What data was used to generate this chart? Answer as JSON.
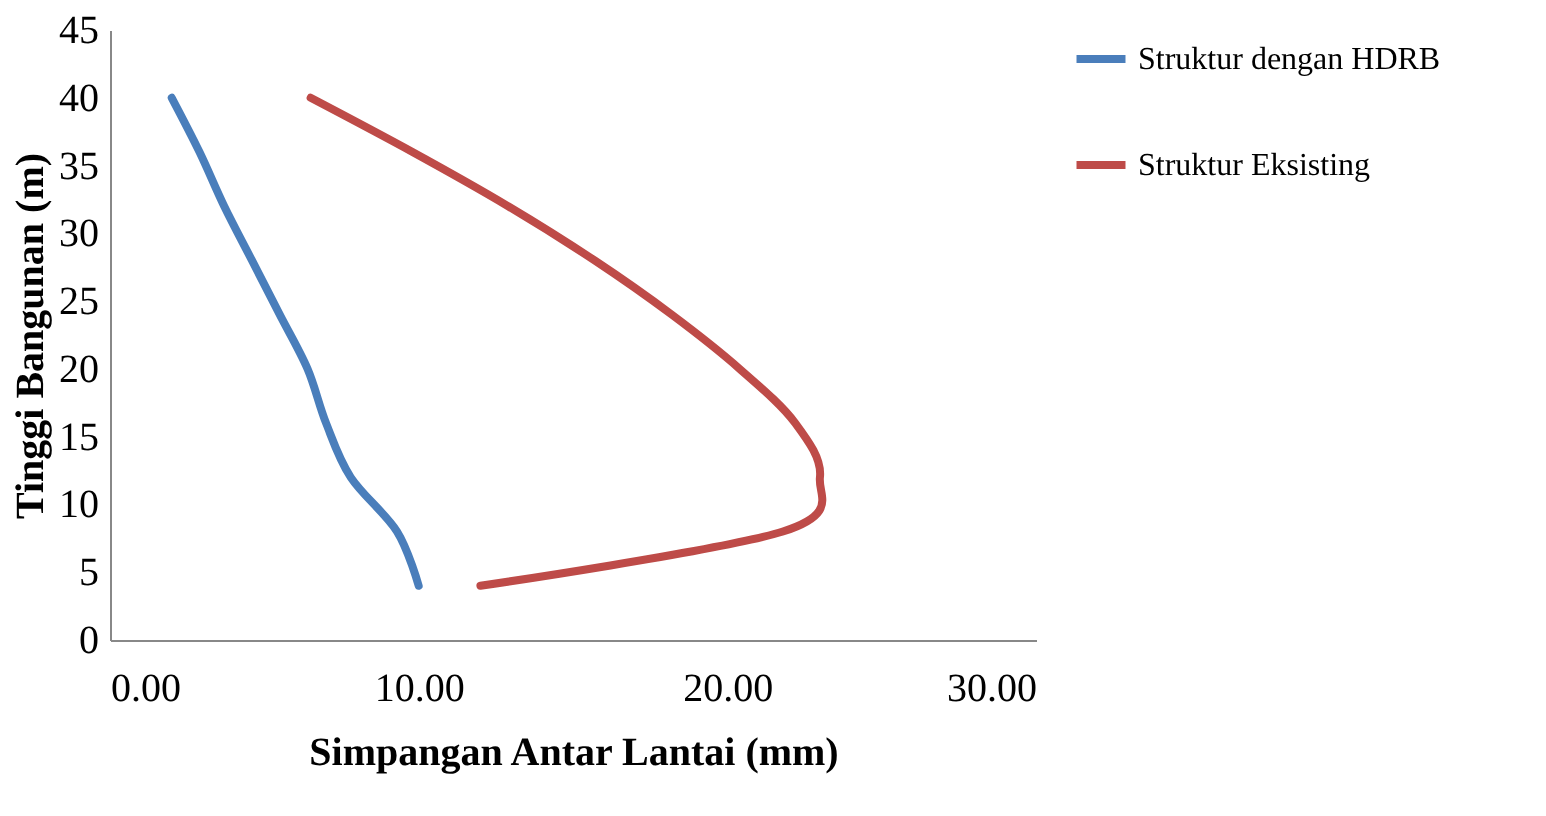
{
  "chart_data": {
    "type": "line",
    "xlabel": "Simpangan Antar Lantai (mm)",
    "ylabel": "Tinggi Bangunan (m)",
    "xlim": [
      0,
      30
    ],
    "xticks": [
      {
        "value": 0,
        "label": "0.00"
      },
      {
        "value": 10,
        "label": "10.00"
      },
      {
        "value": 20,
        "label": "20.00"
      },
      {
        "value": 30,
        "label": "30.00"
      }
    ],
    "ylim": [
      0,
      45
    ],
    "yticks": [
      0,
      5,
      10,
      15,
      20,
      25,
      30,
      35,
      40,
      45
    ],
    "grid": false,
    "legend": "right",
    "marker": "none",
    "line_style": "solid",
    "series": [
      {
        "name": "Struktur dengan HDRB",
        "color": "#4a7ebb",
        "x": [
          10.0,
          9.3,
          7.8,
          7.0,
          6.4,
          5.5,
          4.6,
          3.7,
          2.9,
          2.0
        ],
        "values": [
          4,
          8,
          12,
          16,
          20,
          24,
          28,
          32,
          36,
          40
        ]
      },
      {
        "name": "Struktur Eksisting",
        "color": "#be4b48",
        "x": [
          12.0,
          21.8,
          23.0,
          22.2,
          20.4,
          18.2,
          15.7,
          12.9,
          9.8,
          6.5
        ],
        "values": [
          4,
          8,
          12,
          16,
          20,
          24,
          28,
          32,
          36,
          40
        ]
      }
    ]
  }
}
